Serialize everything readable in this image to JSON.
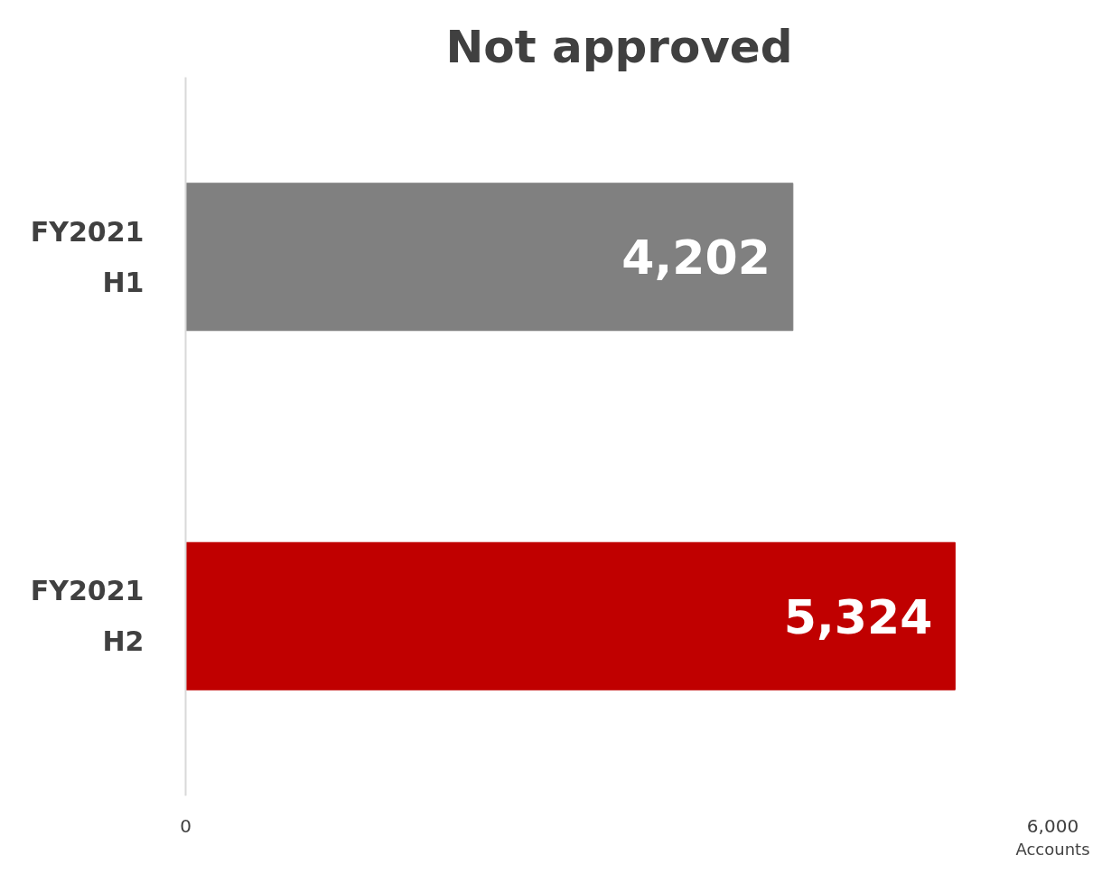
{
  "chart_data": {
    "type": "bar",
    "orientation": "horizontal",
    "title": "Not approved",
    "xlabel": "Accounts",
    "categories": [
      "FY2021 H1",
      "FY2021 H2"
    ],
    "values": [
      4202,
      5324
    ],
    "colors": [
      "#808080",
      "#c00000"
    ],
    "value_labels": [
      "4,202",
      "5,324"
    ],
    "xlim": [
      0,
      6000
    ],
    "xticks": [
      0,
      {
        "value": 6000,
        "label": "6,000"
      }
    ],
    "grid": false
  }
}
